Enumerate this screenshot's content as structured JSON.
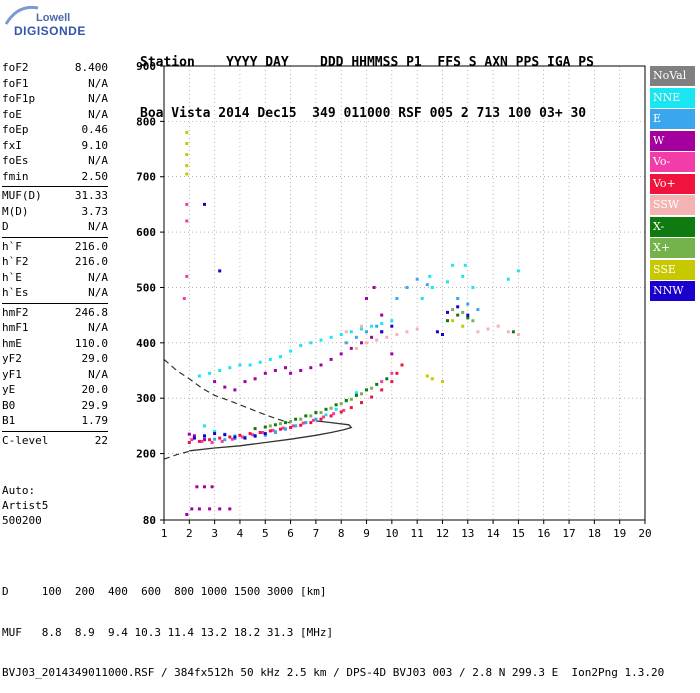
{
  "logo": {
    "top": "Lowell",
    "bottom": "DIGISONDE"
  },
  "header": {
    "line1": "Station    YYYY DAY    DDD HHMMSS P1  FFS S AXN PPS IGA PS",
    "line2": "Boa Vista 2014 Dec15  349 011000 RSF 005 2 713 100 03+ 30"
  },
  "params": {
    "group1": [
      {
        "label": "foF2",
        "value": "8.400"
      },
      {
        "label": "foF1",
        "value": "N/A"
      },
      {
        "label": "foF1p",
        "value": "N/A"
      },
      {
        "label": "foE",
        "value": "N/A"
      },
      {
        "label": "foEp",
        "value": "0.46"
      },
      {
        "label": "fxI",
        "value": "9.10"
      },
      {
        "label": "foEs",
        "value": "N/A"
      },
      {
        "label": "fmin",
        "value": "2.50"
      }
    ],
    "group2": [
      {
        "label": "MUF(D)",
        "value": "31.33"
      },
      {
        "label": "M(D)",
        "value": "3.73"
      },
      {
        "label": "D",
        "value": "N/A"
      }
    ],
    "group3": [
      {
        "label": "h`F",
        "value": "216.0"
      },
      {
        "label": "h`F2",
        "value": "216.0"
      },
      {
        "label": "h`E",
        "value": "N/A"
      },
      {
        "label": "h`Es",
        "value": "N/A"
      }
    ],
    "group4": [
      {
        "label": "hmF2",
        "value": "246.8"
      },
      {
        "label": "hmF1",
        "value": "N/A"
      },
      {
        "label": "hmE",
        "value": "110.0"
      },
      {
        "label": "yF2",
        "value": "29.0"
      },
      {
        "label": "yF1",
        "value": "N/A"
      },
      {
        "label": "yE",
        "value": "20.0"
      },
      {
        "label": "B0",
        "value": "29.9"
      },
      {
        "label": "B1",
        "value": "1.79"
      }
    ],
    "group5": [
      {
        "label": "C-level",
        "value": "22"
      }
    ]
  },
  "extra": {
    "auto": "Auto:",
    "artist": "Artist5",
    "code": "500200"
  },
  "legend": [
    {
      "label": "NoVal",
      "color": "#808080"
    },
    {
      "label": "NNE",
      "color": "#19e6f0"
    },
    {
      "label": "E",
      "color": "#3aa6ee"
    },
    {
      "label": "W",
      "color": "#a3009e"
    },
    {
      "label": "Vo-",
      "color": "#f23ca8"
    },
    {
      "label": "Vo+",
      "color": "#f0143c"
    },
    {
      "label": "SSW",
      "color": "#f4b4b4"
    },
    {
      "label": "X-",
      "color": "#0f7a0f"
    },
    {
      "label": "X+",
      "color": "#74b24c"
    },
    {
      "label": "SSE",
      "color": "#c8c800"
    },
    {
      "label": "NNW",
      "color": "#1a00cc"
    }
  ],
  "footer": {
    "line1": "D     100  200  400  600  800 1000 1500 3000 [km]",
    "line2": "MUF   8.8  8.9  9.4 10.3 11.4 13.2 18.2 31.3 [MHz]",
    "line3": "BVJ03_2014349011000.RSF / 384fx512h 50 kHz 2.5 km / DPS-4D BVJ03 003 / 2.8 N 299.3 E  Ion2Png 1.3.20"
  },
  "chart_data": {
    "type": "scatter",
    "xlim": [
      1,
      20
    ],
    "ylim": [
      80,
      900
    ],
    "xticks": [
      1,
      2,
      3,
      4,
      5,
      6,
      7,
      8,
      9,
      10,
      11,
      12,
      13,
      14,
      15,
      16,
      17,
      18,
      19,
      20
    ],
    "yticks": [
      80,
      200,
      300,
      400,
      500,
      600,
      700,
      800,
      900
    ],
    "grid": true,
    "legend_position": "right",
    "curves": {
      "profile_solid": [
        [
          2.0,
          205
        ],
        [
          3.0,
          210
        ],
        [
          4.0,
          214
        ],
        [
          5.0,
          220
        ],
        [
          6.0,
          226
        ],
        [
          7.0,
          233
        ],
        [
          7.6,
          238
        ],
        [
          8.1,
          243
        ],
        [
          8.4,
          247
        ],
        [
          8.3,
          252
        ],
        [
          7.6,
          256
        ],
        [
          7.0,
          259
        ]
      ],
      "profile_dashed": [
        [
          1.0,
          370
        ],
        [
          1.5,
          350
        ],
        [
          2.0,
          335
        ],
        [
          2.5,
          318
        ],
        [
          3.0,
          305
        ],
        [
          3.5,
          297
        ],
        [
          4.0,
          288
        ],
        [
          4.5,
          279
        ],
        [
          5.0,
          270
        ],
        [
          5.5,
          262
        ],
        [
          6.0,
          255
        ]
      ],
      "lower_dashed": [
        [
          1.0,
          190
        ],
        [
          1.5,
          198
        ],
        [
          2.0,
          204
        ]
      ]
    },
    "series": [
      {
        "name": "NNE",
        "color": "#19e6f0",
        "points": [
          [
            2.4,
            340
          ],
          [
            2.8,
            345
          ],
          [
            3.2,
            350
          ],
          [
            3.6,
            355
          ],
          [
            4.0,
            360
          ],
          [
            4.4,
            360
          ],
          [
            4.8,
            365
          ],
          [
            5.2,
            370
          ],
          [
            5.6,
            375
          ],
          [
            6.0,
            385
          ],
          [
            6.4,
            395
          ],
          [
            6.8,
            400
          ],
          [
            7.2,
            405
          ],
          [
            7.6,
            410
          ],
          [
            8.0,
            415
          ],
          [
            8.4,
            420
          ],
          [
            8.8,
            425
          ],
          [
            9.2,
            430
          ],
          [
            9.6,
            435
          ],
          [
            10.0,
            440
          ],
          [
            2.6,
            250
          ],
          [
            3.0,
            240
          ],
          [
            3.4,
            235
          ],
          [
            3.8,
            232
          ],
          [
            4.2,
            230
          ],
          [
            4.6,
            232
          ],
          [
            5.0,
            235
          ],
          [
            5.4,
            240
          ],
          [
            5.8,
            245
          ],
          [
            6.2,
            250
          ],
          [
            6.6,
            256
          ],
          [
            7.0,
            262
          ],
          [
            7.4,
            270
          ],
          [
            7.8,
            280
          ],
          [
            8.2,
            295
          ],
          [
            8.6,
            310
          ],
          [
            11.2,
            480
          ],
          [
            11.6,
            500
          ],
          [
            12.2,
            510
          ],
          [
            12.8,
            520
          ],
          [
            13.2,
            500
          ],
          [
            14.6,
            515
          ],
          [
            15.0,
            530
          ],
          [
            11.5,
            520
          ],
          [
            12.4,
            540
          ],
          [
            12.9,
            540
          ]
        ]
      },
      {
        "name": "E",
        "color": "#3aa6ee",
        "points": [
          [
            2.2,
            230
          ],
          [
            2.6,
            228
          ],
          [
            3.0,
            226
          ],
          [
            3.4,
            225
          ],
          [
            3.8,
            227
          ],
          [
            4.2,
            229
          ],
          [
            4.6,
            231
          ],
          [
            5.0,
            233
          ],
          [
            5.4,
            238
          ],
          [
            5.8,
            244
          ],
          [
            6.2,
            250
          ],
          [
            6.6,
            256
          ],
          [
            7.0,
            262
          ],
          [
            8.2,
            400
          ],
          [
            8.6,
            410
          ],
          [
            9.0,
            420
          ],
          [
            9.4,
            430
          ],
          [
            10.2,
            480
          ],
          [
            10.6,
            500
          ],
          [
            11.0,
            515
          ],
          [
            11.4,
            505
          ],
          [
            12.6,
            480
          ],
          [
            13.0,
            470
          ],
          [
            13.4,
            460
          ]
        ]
      },
      {
        "name": "W",
        "color": "#a3009e",
        "points": [
          [
            2.0,
            235
          ],
          [
            2.2,
            232
          ],
          [
            2.6,
            225
          ],
          [
            3.0,
            330
          ],
          [
            3.4,
            320
          ],
          [
            3.8,
            315
          ],
          [
            4.2,
            330
          ],
          [
            4.6,
            335
          ],
          [
            5.0,
            345
          ],
          [
            5.4,
            350
          ],
          [
            5.8,
            355
          ],
          [
            6.0,
            345
          ],
          [
            6.4,
            350
          ],
          [
            6.8,
            355
          ],
          [
            7.2,
            360
          ],
          [
            7.6,
            370
          ],
          [
            8.0,
            380
          ],
          [
            8.4,
            390
          ],
          [
            8.8,
            400
          ],
          [
            9.2,
            410
          ],
          [
            9.6,
            420
          ],
          [
            9.0,
            480
          ],
          [
            9.3,
            500
          ],
          [
            9.6,
            450
          ],
          [
            10.0,
            380
          ],
          [
            10.4,
            360
          ],
          [
            2.3,
            140
          ],
          [
            2.6,
            140
          ],
          [
            2.9,
            140
          ],
          [
            2.1,
            100
          ],
          [
            2.4,
            100
          ],
          [
            2.8,
            100
          ],
          [
            3.2,
            100
          ],
          [
            3.6,
            100
          ],
          [
            1.9,
            90
          ]
        ]
      },
      {
        "name": "Vo-",
        "color": "#f23ca8",
        "points": [
          [
            2.1,
            225
          ],
          [
            2.5,
            222
          ],
          [
            2.9,
            220
          ],
          [
            3.3,
            222
          ],
          [
            3.7,
            226
          ],
          [
            4.1,
            230
          ],
          [
            4.5,
            234
          ],
          [
            4.9,
            238
          ],
          [
            5.3,
            242
          ],
          [
            5.7,
            246
          ],
          [
            6.1,
            250
          ],
          [
            6.5,
            255
          ],
          [
            6.9,
            260
          ],
          [
            7.3,
            266
          ],
          [
            7.7,
            272
          ],
          [
            8.1,
            278
          ],
          [
            9.6,
            330
          ],
          [
            10.0,
            345
          ],
          [
            10.4,
            360
          ],
          [
            1.9,
            620
          ],
          [
            1.9,
            650
          ],
          [
            1.8,
            480
          ],
          [
            1.9,
            520
          ]
        ]
      },
      {
        "name": "Vo+",
        "color": "#f0143c",
        "points": [
          [
            2.0,
            220
          ],
          [
            2.4,
            222
          ],
          [
            2.8,
            225
          ],
          [
            3.2,
            228
          ],
          [
            3.6,
            230
          ],
          [
            4.0,
            233
          ],
          [
            4.4,
            236
          ],
          [
            4.8,
            238
          ],
          [
            5.2,
            241
          ],
          [
            5.6,
            244
          ],
          [
            6.0,
            247
          ],
          [
            6.4,
            251
          ],
          [
            6.8,
            256
          ],
          [
            7.2,
            262
          ],
          [
            7.6,
            268
          ],
          [
            8.0,
            275
          ],
          [
            8.4,
            283
          ],
          [
            8.8,
            292
          ],
          [
            9.2,
            302
          ],
          [
            9.6,
            315
          ],
          [
            10.0,
            330
          ],
          [
            10.2,
            345
          ],
          [
            10.4,
            360
          ]
        ]
      },
      {
        "name": "SSW",
        "color": "#f4b4b4",
        "points": [
          [
            8.6,
            390
          ],
          [
            9.0,
            400
          ],
          [
            9.4,
            405
          ],
          [
            9.8,
            410
          ],
          [
            10.2,
            415
          ],
          [
            10.6,
            420
          ],
          [
            11.0,
            425
          ],
          [
            13.4,
            420
          ],
          [
            13.8,
            425
          ],
          [
            14.2,
            430
          ],
          [
            14.6,
            420
          ],
          [
            15.0,
            415
          ],
          [
            8.2,
            420
          ],
          [
            8.8,
            430
          ]
        ]
      },
      {
        "name": "X-",
        "color": "#0f7a0f",
        "points": [
          [
            4.6,
            245
          ],
          [
            5.0,
            248
          ],
          [
            5.4,
            252
          ],
          [
            5.8,
            256
          ],
          [
            6.2,
            262
          ],
          [
            6.6,
            268
          ],
          [
            7.0,
            274
          ],
          [
            7.4,
            280
          ],
          [
            7.8,
            288
          ],
          [
            8.2,
            296
          ],
          [
            8.6,
            305
          ],
          [
            9.0,
            315
          ],
          [
            9.4,
            325
          ],
          [
            9.8,
            335
          ],
          [
            12.2,
            440
          ],
          [
            12.6,
            450
          ],
          [
            13.0,
            445
          ],
          [
            14.8,
            420
          ]
        ]
      },
      {
        "name": "X+",
        "color": "#74b24c",
        "points": [
          [
            5.2,
            250
          ],
          [
            5.6,
            254
          ],
          [
            6.0,
            258
          ],
          [
            6.4,
            262
          ],
          [
            6.8,
            268
          ],
          [
            7.2,
            274
          ],
          [
            7.6,
            282
          ],
          [
            8.0,
            290
          ],
          [
            8.4,
            298
          ],
          [
            8.8,
            308
          ],
          [
            9.2,
            318
          ],
          [
            12.4,
            460
          ],
          [
            12.8,
            455
          ],
          [
            13.2,
            440
          ]
        ]
      },
      {
        "name": "SSE",
        "color": "#c8c800",
        "points": [
          [
            1.9,
            705
          ],
          [
            1.9,
            720
          ],
          [
            1.9,
            740
          ],
          [
            1.9,
            760
          ],
          [
            1.9,
            780
          ],
          [
            11.4,
            340
          ],
          [
            11.6,
            335
          ],
          [
            12.0,
            330
          ],
          [
            12.4,
            440
          ],
          [
            12.8,
            430
          ]
        ]
      },
      {
        "name": "NNW",
        "color": "#1a00cc",
        "points": [
          [
            2.2,
            228
          ],
          [
            2.6,
            232
          ],
          [
            3.0,
            236
          ],
          [
            3.4,
            234
          ],
          [
            3.8,
            230
          ],
          [
            4.2,
            228
          ],
          [
            4.6,
            232
          ],
          [
            5.0,
            236
          ],
          [
            9.6,
            420
          ],
          [
            10.0,
            430
          ],
          [
            12.2,
            455
          ],
          [
            12.6,
            465
          ],
          [
            13.0,
            450
          ],
          [
            11.8,
            420
          ],
          [
            12.0,
            415
          ],
          [
            2.6,
            650
          ],
          [
            3.2,
            530
          ]
        ]
      }
    ]
  }
}
